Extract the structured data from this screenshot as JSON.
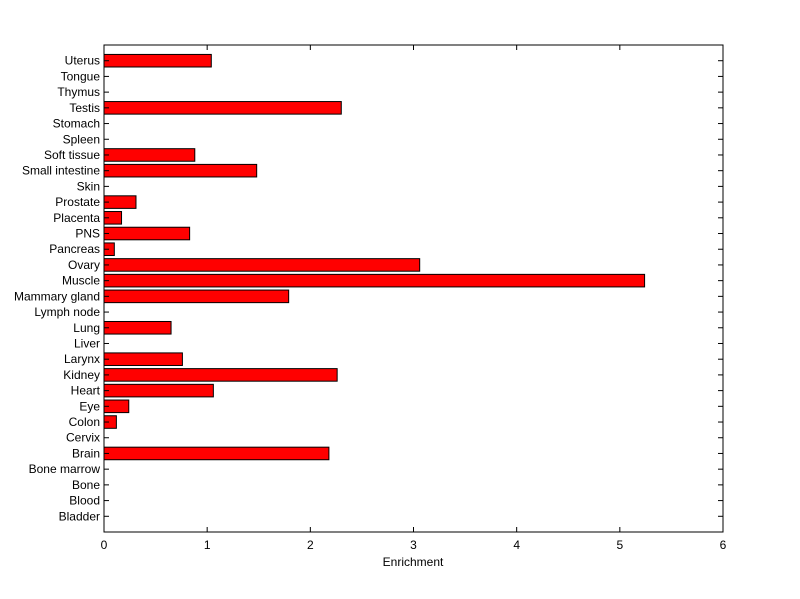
{
  "chart_data": {
    "type": "barh",
    "x_label": "Enrichment",
    "categories": [
      "Bladder",
      "Blood",
      "Bone",
      "Bone marrow",
      "Brain",
      "Cervix",
      "Colon",
      "Eye",
      "Heart",
      "Kidney",
      "Larynx",
      "Liver",
      "Lung",
      "Lymph node",
      "Mammary gland",
      "Muscle",
      "Ovary",
      "Pancreas",
      "PNS",
      "Placenta",
      "Prostate",
      "Skin",
      "Small intestine",
      "Soft tissue",
      "Spleen",
      "Stomach",
      "Testis",
      "Thymus",
      "Tongue",
      "Uterus"
    ],
    "values": [
      0,
      0,
      0,
      0,
      2.18,
      0,
      0.12,
      0.24,
      1.06,
      2.26,
      0.76,
      0,
      0.65,
      0,
      1.79,
      5.24,
      3.06,
      0.1,
      0.83,
      0.17,
      0.31,
      0,
      1.48,
      0.88,
      0,
      0,
      2.3,
      0,
      0,
      1.04
    ],
    "color": "#ff0000",
    "xlim": [
      0,
      6
    ],
    "xticks": [
      0,
      1,
      2,
      3,
      4,
      5,
      6
    ]
  }
}
